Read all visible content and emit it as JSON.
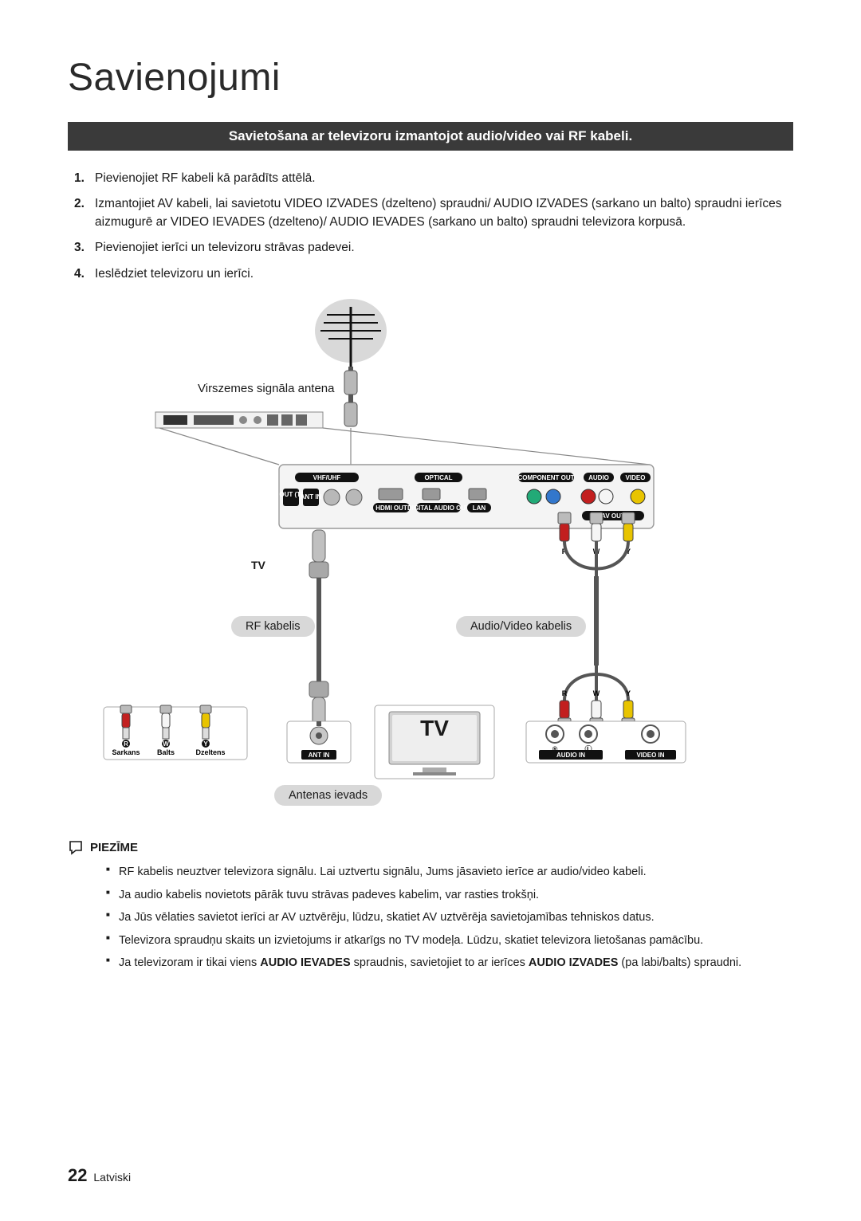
{
  "page_title": "Savienojumi",
  "section_heading": "Savietošana ar televizoru izmantojot audio/video vai RF kabeli.",
  "steps": [
    {
      "n": "1.",
      "text": "Pievienojiet RF kabeli kā parādīts attēlā."
    },
    {
      "n": "2.",
      "text": "Izmantojiet AV kabeli, lai savietotu VIDEO IZVADES (dzelteno) spraudni/ AUDIO IZVADES (sarkano un balto) spraudni ierīces aizmugurē ar VIDEO IEVADES (dzelteno)/ AUDIO IEVADES (sarkano un balto) spraudni televizora korpusā."
    },
    {
      "n": "3.",
      "text": "Pievienojiet ierīci un televizoru strāvas padevei."
    },
    {
      "n": "4.",
      "text": "Ieslēdziet televizoru un ierīci."
    }
  ],
  "labels": {
    "antenna": "Virszemes signāla antena",
    "tv_small": "TV",
    "rf_cable": "RF kabelis",
    "av_cable": "Audio/Video kabelis",
    "antenna_feed": "Antenas ievads",
    "red": "Sarkans",
    "white": "Balts",
    "yellow": "Dzeltens",
    "tv_big": "TV",
    "ant_in": "ANT IN",
    "audio_in": "AUDIO IN",
    "video_in": "VIDEO IN",
    "vhf": "VHF/UHF",
    "optical": "OPTICAL",
    "hdmi": "HDMI OUT",
    "digital_audio": "DIGITAL AUDIO OUT",
    "lan": "LAN",
    "component": "COMPONENT OUT",
    "audio": "AUDIO",
    "video": "VIDEO",
    "av_out": "AV OUT",
    "ant_out": "ANT OUT (TO TV)",
    "ant_in2": "ANT IN",
    "r": "R",
    "w": "W",
    "y": "Y",
    "l": "L",
    "rcircle": "®"
  },
  "note_label": "PIEZĪME",
  "notes": [
    "RF kabelis neuztver televizora signālu. Lai uztvertu signālu, Jums jāsavieto ierīce ar audio/video kabeli.",
    "Ja audio kabelis novietots pārāk tuvu strāvas padeves kabelim, var rasties trokšņi.",
    "Ja Jūs vēlaties savietot ierīci ar AV uztvērēju, lūdzu, skatiet AV uztvērēja savietojamības tehniskos datus.",
    "Televizora spraudņu skaits un izvietojums ir atkarīgs no TV modeļa. Lūdzu, skatiet televizora lietošanas pamācību.",
    "Ja televizoram ir tikai viens <b>AUDIO IEVADES</b> spraudnis, savietojiet to ar ierīces <b>AUDIO IZVADES</b> (pa labi/balts) spraudni."
  ],
  "page_number": "22",
  "page_lang": "Latviski",
  "colors": {
    "red": "#c21f1f",
    "white": "#f5f5f5",
    "yellow": "#e8c400",
    "gray": "#cfcfcf",
    "dark": "#1e1e1e",
    "panel": "#e6e6e6",
    "stroke": "#8b8b8b"
  }
}
